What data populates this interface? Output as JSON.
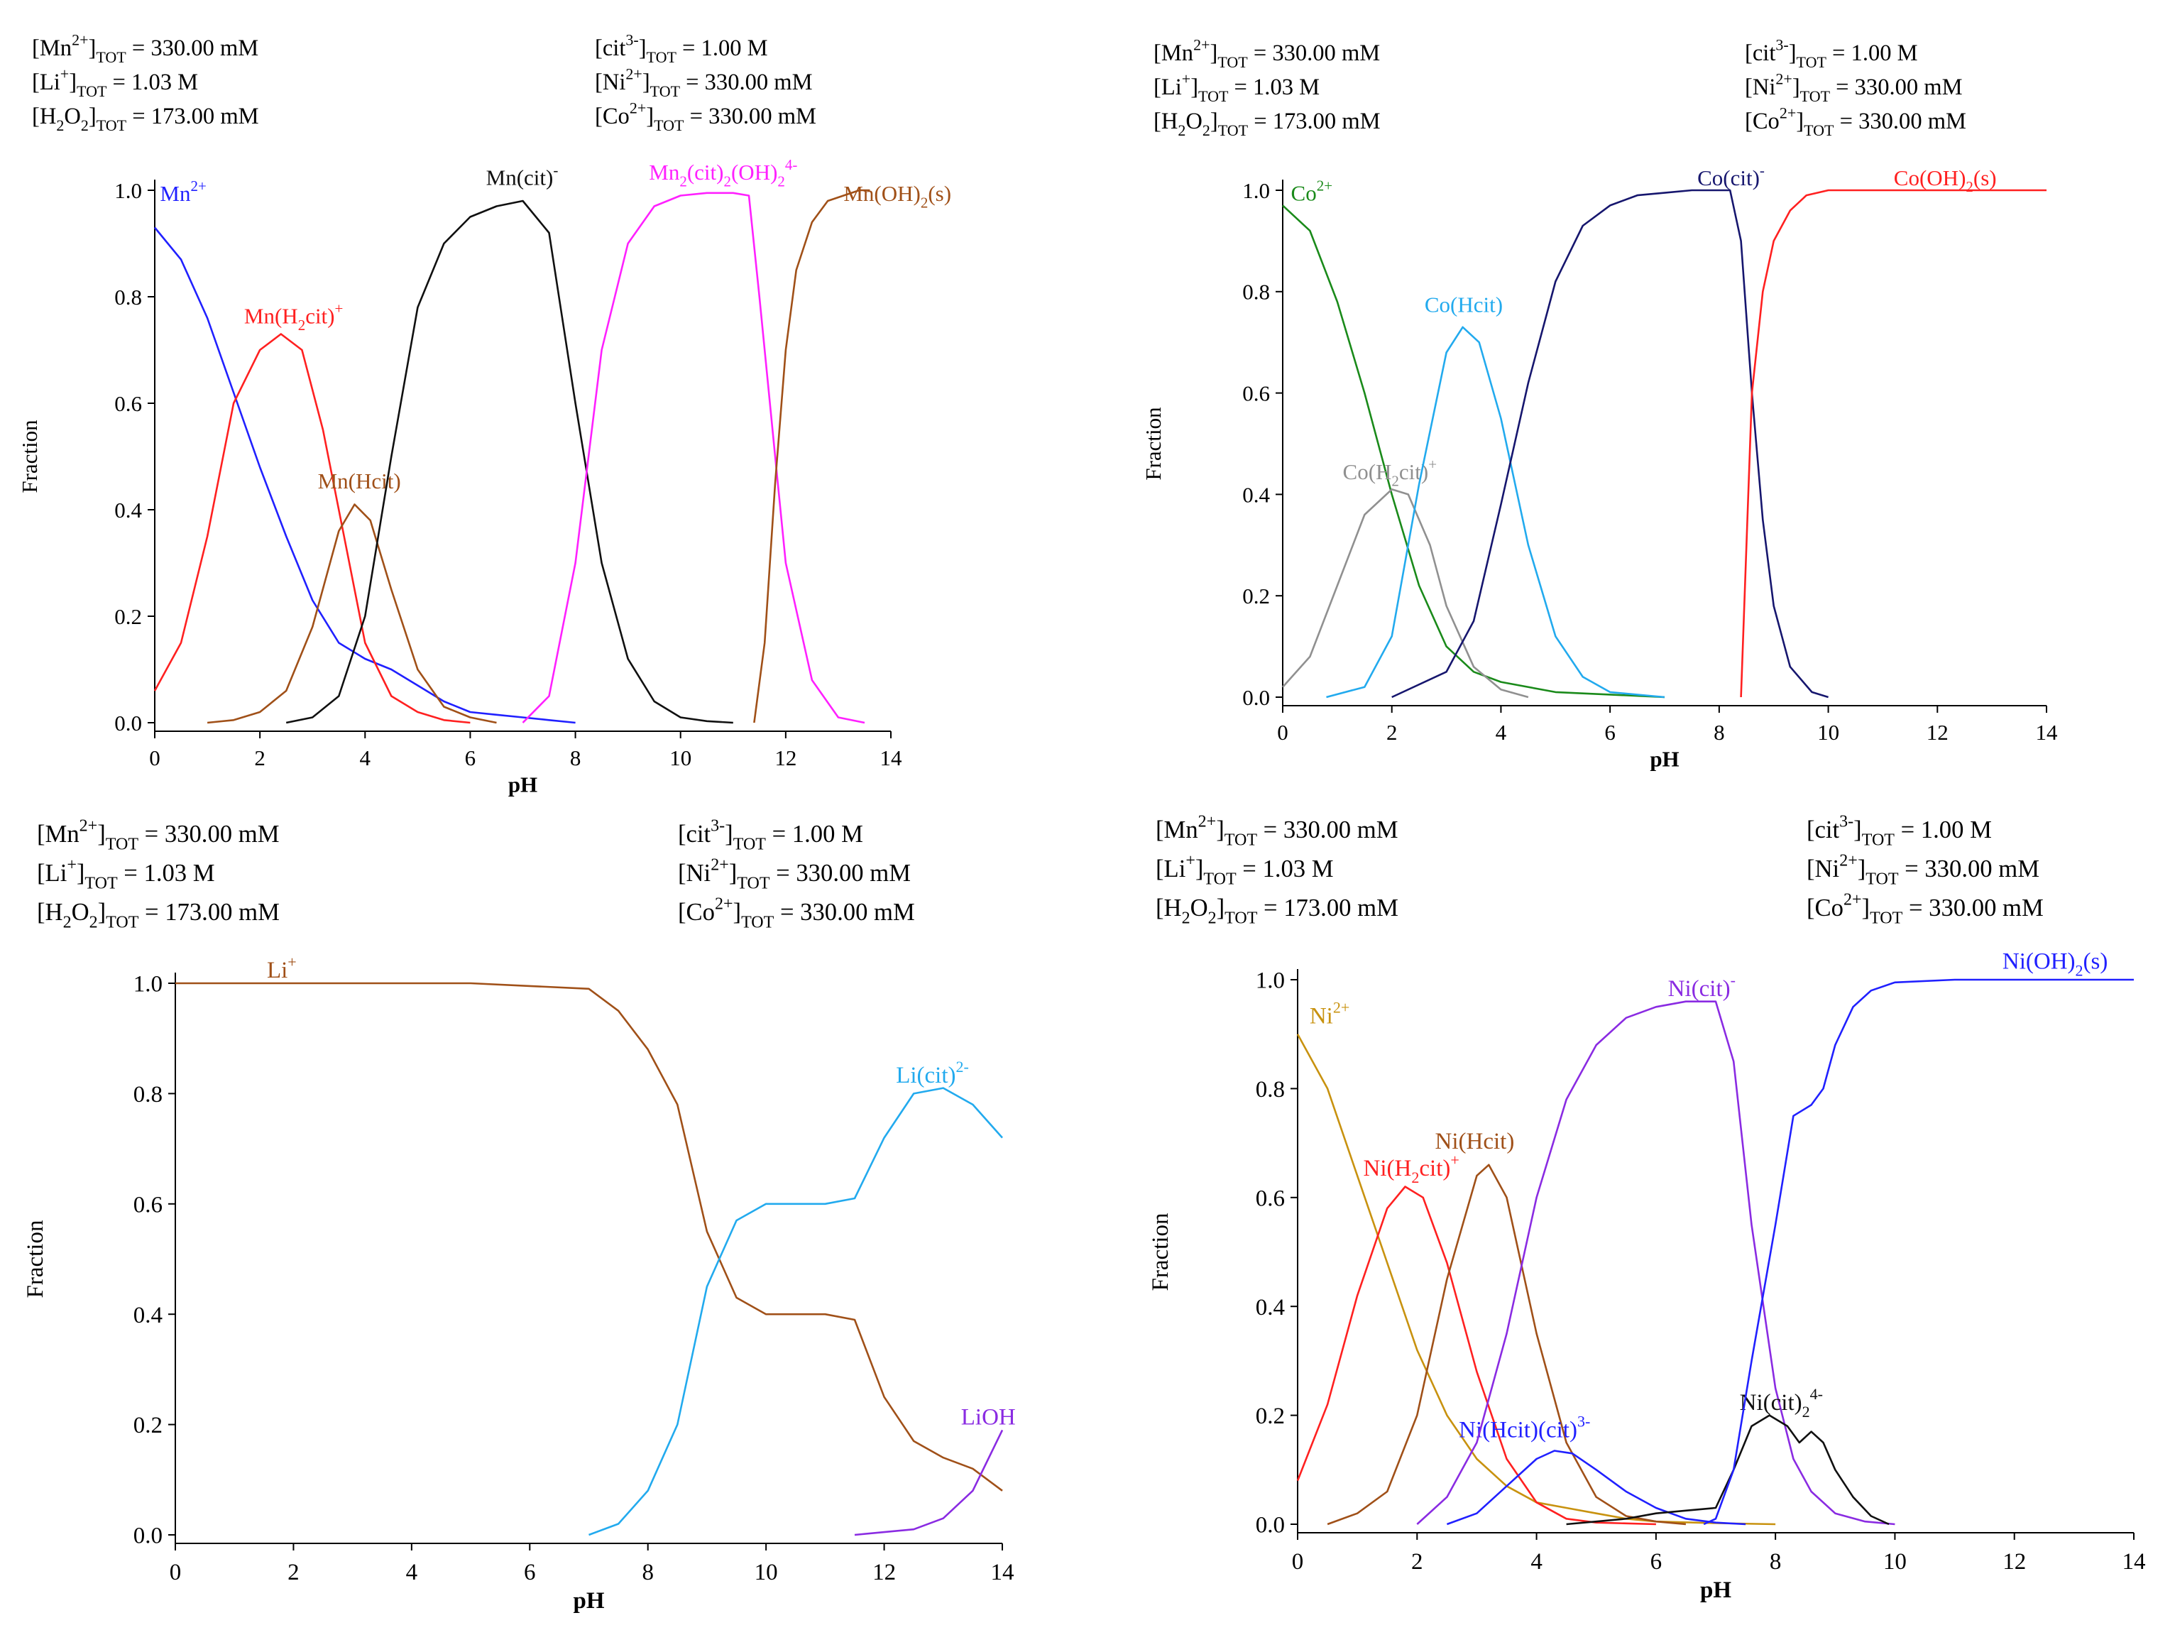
{
  "conditions": {
    "left": [
      {
        "base": "[Mn",
        "sup": "2+",
        "close": "]",
        "sub": "TOT",
        "eq": "=",
        "value": "330.00 mM"
      },
      {
        "base": "[Li",
        "sup": "+",
        "close": "]",
        "sub": "TOT",
        "eq": "=",
        "value": "1.03 M"
      },
      {
        "base": "[H",
        "sub1": "2",
        "mid": "O",
        "sub2": "2",
        "close": "]",
        "sub": "TOT",
        "eq": "=",
        "value": "173.00 mM"
      }
    ],
    "right": [
      {
        "base": "[cit",
        "sup": "3-",
        "close": "]",
        "sub": "TOT",
        "eq": "=",
        "value": "1.00 M"
      },
      {
        "base": "[Ni",
        "sup": "2+",
        "close": "]",
        "sub": "TOT",
        "eq": "=",
        "value": "330.00 mM"
      },
      {
        "base": "[Co",
        "sup": "2+",
        "close": "]",
        "sub": "TOT",
        "eq": "=",
        "value": "330.00 mM"
      }
    ]
  },
  "chart_data": [
    {
      "id": "mn",
      "type": "line",
      "xlabel": "pH",
      "ylabel": "Fraction",
      "xlim": [
        0,
        14
      ],
      "ylim": [
        0,
        1.0
      ],
      "xticks": [
        "0",
        "2",
        "4",
        "6",
        "8",
        "10",
        "12",
        "14"
      ],
      "yticks": [
        "0.0",
        "0.2",
        "0.4",
        "0.6",
        "0.8",
        "1.0"
      ],
      "series": [
        {
          "name": "Mn2+",
          "label": "Mn",
          "sup": "2+",
          "color": "#2020ff",
          "label_at": [
            0.1,
            0.98
          ],
          "x": [
            0,
            0.5,
            1,
            1.5,
            2,
            2.5,
            3,
            3.5,
            4,
            4.5,
            5,
            5.5,
            6,
            6.5,
            7,
            7.5,
            8
          ],
          "y": [
            0.93,
            0.87,
            0.76,
            0.62,
            0.48,
            0.35,
            0.23,
            0.15,
            0.12,
            0.1,
            0.07,
            0.04,
            0.02,
            0.015,
            0.01,
            0.005,
            0
          ]
        },
        {
          "name": "Mn(H2cit)+",
          "label": "Mn(H",
          "sub": "2",
          "tail": "cit)",
          "sup": "+",
          "color": "#ff2020",
          "label_at": [
            1.7,
            0.75
          ],
          "x": [
            0,
            0.5,
            1,
            1.5,
            2,
            2.4,
            2.8,
            3.2,
            3.6,
            4,
            4.5,
            5,
            5.5,
            6
          ],
          "y": [
            0.06,
            0.15,
            0.35,
            0.6,
            0.7,
            0.73,
            0.7,
            0.55,
            0.35,
            0.15,
            0.05,
            0.02,
            0.005,
            0
          ]
        },
        {
          "name": "Mn(Hcit)",
          "label": "Mn(Hcit)",
          "color": "#a05018",
          "label_at": [
            3.1,
            0.44
          ],
          "x": [
            1,
            1.5,
            2,
            2.5,
            3,
            3.5,
            3.8,
            4.1,
            4.5,
            5,
            5.5,
            6,
            6.5
          ],
          "y": [
            0,
            0.005,
            0.02,
            0.06,
            0.18,
            0.36,
            0.41,
            0.38,
            0.25,
            0.1,
            0.03,
            0.01,
            0
          ]
        },
        {
          "name": "Mn(cit)-",
          "label": "Mn(cit)",
          "sup": "-",
          "color": "#101010",
          "label_at": [
            6.3,
            1.01
          ],
          "x": [
            2.5,
            3,
            3.5,
            4,
            4.5,
            5,
            5.5,
            6,
            6.5,
            7,
            7.5,
            8,
            8.5,
            9,
            9.5,
            10,
            10.5,
            11
          ],
          "y": [
            0,
            0.01,
            0.05,
            0.2,
            0.5,
            0.78,
            0.9,
            0.95,
            0.97,
            0.98,
            0.92,
            0.6,
            0.3,
            0.12,
            0.04,
            0.01,
            0.003,
            0
          ]
        },
        {
          "name": "Mn2(cit)2(OH)24-",
          "label": "Mn",
          "sub": "2",
          "tail": "(cit)",
          "sub2": "2",
          "tail2": "(OH)",
          "sub3": "2",
          "sup": "4-",
          "color": "#ff20ff",
          "label_at": [
            9.4,
            1.02
          ],
          "x": [
            7,
            7.5,
            8,
            8.5,
            9,
            9.5,
            10,
            10.5,
            11,
            11.3,
            11.5,
            11.8,
            12,
            12.5,
            13,
            13.5
          ],
          "y": [
            0,
            0.05,
            0.3,
            0.7,
            0.9,
            0.97,
            0.99,
            0.995,
            0.995,
            0.99,
            0.8,
            0.5,
            0.3,
            0.08,
            0.01,
            0
          ]
        },
        {
          "name": "Mn(OH)2(s)",
          "label": "Mn(OH)",
          "sub": "2",
          "tail": "(s)",
          "color": "#a05018",
          "label_at": [
            13.1,
            0.98
          ],
          "x": [
            11.4,
            11.6,
            11.8,
            12,
            12.2,
            12.5,
            12.8,
            13.1,
            13.4,
            13.6
          ],
          "y": [
            0,
            0.15,
            0.45,
            0.7,
            0.85,
            0.94,
            0.98,
            0.99,
            1.0,
            1.0
          ]
        }
      ]
    },
    {
      "id": "co",
      "type": "line",
      "xlabel": "pH",
      "ylabel": "Fraction",
      "xlim": [
        0,
        14
      ],
      "ylim": [
        0,
        1.0
      ],
      "xticks": [
        "0",
        "2",
        "4",
        "6",
        "8",
        "10",
        "12",
        "14"
      ],
      "yticks": [
        "0.0",
        "0.2",
        "0.4",
        "0.6",
        "0.8",
        "1.0"
      ],
      "series": [
        {
          "name": "Co2+",
          "label": "Co",
          "sup": "2+",
          "color": "#1a8a1a",
          "label_at": [
            0.15,
            0.98
          ],
          "x": [
            0,
            0.5,
            1,
            1.5,
            2,
            2.5,
            3,
            3.5,
            4,
            5,
            6,
            7
          ],
          "y": [
            0.97,
            0.92,
            0.78,
            0.6,
            0.4,
            0.22,
            0.1,
            0.05,
            0.03,
            0.01,
            0.005,
            0
          ]
        },
        {
          "name": "Co(H2cit)+",
          "label": "Co(H",
          "sub": "2",
          "tail": "cit)",
          "sup": "+",
          "color": "#909090",
          "label_at": [
            1.1,
            0.43
          ],
          "x": [
            0,
            0.5,
            1,
            1.5,
            2,
            2.3,
            2.7,
            3,
            3.5,
            4,
            4.5
          ],
          "y": [
            0.02,
            0.08,
            0.22,
            0.36,
            0.41,
            0.4,
            0.3,
            0.18,
            0.06,
            0.015,
            0
          ]
        },
        {
          "name": "Co(Hcit)",
          "label": "Co(Hcit)",
          "color": "#22aaee",
          "label_at": [
            2.6,
            0.76
          ],
          "x": [
            0.8,
            1.5,
            2,
            2.5,
            3,
            3.3,
            3.6,
            4,
            4.5,
            5,
            5.5,
            6,
            7
          ],
          "y": [
            0,
            0.02,
            0.12,
            0.42,
            0.68,
            0.73,
            0.7,
            0.55,
            0.3,
            0.12,
            0.04,
            0.01,
            0
          ]
        },
        {
          "name": "Co(cit)-",
          "label": "Co(cit)",
          "sup": "-",
          "color": "#16166e",
          "label_at": [
            7.6,
            1.01
          ],
          "x": [
            2,
            3,
            3.5,
            4,
            4.5,
            5,
            5.5,
            6,
            6.5,
            7,
            7.5,
            8,
            8.2,
            8.4,
            8.6,
            8.8,
            9,
            9.3,
            9.7,
            10
          ],
          "y": [
            0,
            0.05,
            0.15,
            0.38,
            0.62,
            0.82,
            0.93,
            0.97,
            0.99,
            0.995,
            1.0,
            1.0,
            1.0,
            0.9,
            0.6,
            0.35,
            0.18,
            0.06,
            0.01,
            0
          ]
        },
        {
          "name": "Co(OH)2(s)",
          "label": "Co(OH)",
          "sub": "2",
          "tail": "(s)",
          "color": "#ff2020",
          "label_at": [
            11.2,
            1.01
          ],
          "x": [
            8.4,
            8.5,
            8.6,
            8.8,
            9,
            9.3,
            9.6,
            10,
            11,
            12,
            13,
            14
          ],
          "y": [
            0,
            0.3,
            0.6,
            0.8,
            0.9,
            0.96,
            0.99,
            1.0,
            1.0,
            1.0,
            1.0,
            1.0
          ]
        }
      ]
    },
    {
      "id": "li",
      "type": "line",
      "xlabel": "pH",
      "ylabel": "Fraction",
      "xlim": [
        0,
        14
      ],
      "ylim": [
        0,
        1.0
      ],
      "xticks": [
        "0",
        "2",
        "4",
        "6",
        "8",
        "10",
        "12",
        "14"
      ],
      "yticks": [
        "0.0",
        "0.2",
        "0.4",
        "0.6",
        "0.8",
        "1.0"
      ],
      "series": [
        {
          "name": "Li+",
          "label": "Li",
          "sup": "+",
          "color": "#a05018",
          "label_at": [
            1.55,
            1.01
          ],
          "x": [
            0,
            1,
            2,
            3,
            4,
            5,
            6,
            7,
            7.5,
            8,
            8.5,
            9,
            9.5,
            10,
            10.5,
            11,
            11.5,
            12,
            12.5,
            13,
            13.5,
            14
          ],
          "y": [
            1.0,
            1.0,
            1.0,
            1.0,
            1.0,
            1.0,
            0.995,
            0.99,
            0.95,
            0.88,
            0.78,
            0.55,
            0.43,
            0.4,
            0.4,
            0.4,
            0.39,
            0.25,
            0.17,
            0.14,
            0.12,
            0.08
          ]
        },
        {
          "name": "Li(cit)2-",
          "label": "Li(cit)",
          "sup": "2-",
          "color": "#22aaee",
          "label_at": [
            12.2,
            0.82
          ],
          "x": [
            7,
            7.5,
            8,
            8.5,
            9,
            9.5,
            10,
            10.5,
            11,
            11.5,
            12,
            12.5,
            13,
            13.5,
            14
          ],
          "y": [
            0,
            0.02,
            0.08,
            0.2,
            0.45,
            0.57,
            0.6,
            0.6,
            0.6,
            0.61,
            0.72,
            0.8,
            0.81,
            0.78,
            0.72
          ]
        },
        {
          "name": "LiOH",
          "label": "LiOH",
          "color": "#8a2be2",
          "label_at": [
            13.3,
            0.2
          ],
          "x": [
            11.5,
            12,
            12.5,
            13,
            13.5,
            14
          ],
          "y": [
            0,
            0.005,
            0.01,
            0.03,
            0.08,
            0.19
          ]
        }
      ]
    },
    {
      "id": "ni",
      "type": "line",
      "xlabel": "pH",
      "ylabel": "Fraction",
      "xlim": [
        0,
        14
      ],
      "ylim": [
        0,
        1.0
      ],
      "xticks": [
        "0",
        "2",
        "4",
        "6",
        "8",
        "10",
        "12",
        "14"
      ],
      "yticks": [
        "0.0",
        "0.2",
        "0.4",
        "0.6",
        "0.8",
        "1.0"
      ],
      "series": [
        {
          "name": "Ni2+",
          "label": "Ni",
          "sup": "2+",
          "color": "#c8920f",
          "label_at": [
            0.2,
            0.92
          ],
          "x": [
            0,
            0.5,
            1,
            1.5,
            2,
            2.5,
            3,
            3.5,
            4,
            4.5,
            5,
            5.5,
            6,
            7,
            8
          ],
          "y": [
            0.9,
            0.8,
            0.64,
            0.48,
            0.32,
            0.2,
            0.12,
            0.07,
            0.04,
            0.03,
            0.02,
            0.01,
            0.005,
            0.002,
            0
          ]
        },
        {
          "name": "Ni(H2cit)+",
          "label": "Ni(H",
          "sub": "2",
          "tail": "cit)",
          "sup": "+",
          "color": "#ff2020",
          "label_at": [
            1.1,
            0.64
          ],
          "x": [
            0,
            0.5,
            1,
            1.5,
            1.8,
            2.1,
            2.5,
            3,
            3.5,
            4,
            4.5,
            5,
            6
          ],
          "y": [
            0.08,
            0.22,
            0.42,
            0.58,
            0.62,
            0.6,
            0.48,
            0.28,
            0.12,
            0.04,
            0.01,
            0.003,
            0
          ]
        },
        {
          "name": "Ni(Hcit)",
          "label": "Ni(Hcit)",
          "color": "#a05018",
          "label_at": [
            2.3,
            0.69
          ],
          "x": [
            0.5,
            1,
            1.5,
            2,
            2.5,
            3,
            3.2,
            3.5,
            4,
            4.5,
            5,
            5.5,
            6,
            6.5
          ],
          "y": [
            0,
            0.02,
            0.06,
            0.2,
            0.45,
            0.64,
            0.66,
            0.6,
            0.35,
            0.15,
            0.05,
            0.015,
            0.005,
            0
          ]
        },
        {
          "name": "Ni(Hcit)(cit)3-",
          "label": "Ni(Hcit)(cit)",
          "sup": "3-",
          "color": "#2020ff",
          "label_at": [
            2.7,
            0.16
          ],
          "x": [
            2.5,
            3,
            3.5,
            4,
            4.3,
            4.6,
            5,
            5.5,
            6,
            6.5,
            7,
            7.5
          ],
          "y": [
            0,
            0.02,
            0.07,
            0.12,
            0.135,
            0.13,
            0.1,
            0.06,
            0.03,
            0.01,
            0.003,
            0
          ]
        },
        {
          "name": "Ni(cit)-",
          "label": "Ni(cit)",
          "sup": "-",
          "color": "#8a2be2",
          "label_at": [
            6.2,
            0.97
          ],
          "x": [
            2,
            2.5,
            3,
            3.5,
            4,
            4.5,
            5,
            5.5,
            6,
            6.5,
            7,
            7.3,
            7.6,
            8,
            8.3,
            8.6,
            9,
            9.5,
            10
          ],
          "y": [
            0,
            0.05,
            0.15,
            0.35,
            0.6,
            0.78,
            0.88,
            0.93,
            0.95,
            0.96,
            0.96,
            0.85,
            0.55,
            0.25,
            0.12,
            0.06,
            0.02,
            0.005,
            0
          ]
        },
        {
          "name": "Ni(cit)24-",
          "label": "Ni(cit)",
          "sub": "2",
          "sup": "4-",
          "color": "#101010",
          "label_at": [
            7.4,
            0.21
          ],
          "x": [
            4.5,
            5,
            5.5,
            6,
            6.5,
            7,
            7.3,
            7.6,
            7.9,
            8.2,
            8.4,
            8.6,
            8.8,
            9,
            9.3,
            9.6,
            9.9
          ],
          "y": [
            0,
            0.005,
            0.01,
            0.02,
            0.025,
            0.03,
            0.1,
            0.18,
            0.2,
            0.18,
            0.15,
            0.17,
            0.15,
            0.1,
            0.05,
            0.015,
            0
          ]
        },
        {
          "name": "Ni(OH)2(s)",
          "label": "Ni(OH)",
          "sub": "2",
          "tail": "(s)",
          "color": "#2020ff",
          "label_at": [
            11.8,
            1.02
          ],
          "x": [
            6.8,
            7,
            7.3,
            7.6,
            8,
            8.3,
            8.6,
            8.8,
            9,
            9.3,
            9.6,
            10,
            11,
            12,
            13,
            14
          ],
          "y": [
            0,
            0.01,
            0.1,
            0.3,
            0.55,
            0.75,
            0.77,
            0.8,
            0.88,
            0.95,
            0.98,
            0.995,
            1.0,
            1.0,
            1.0,
            1.0
          ]
        }
      ]
    }
  ]
}
